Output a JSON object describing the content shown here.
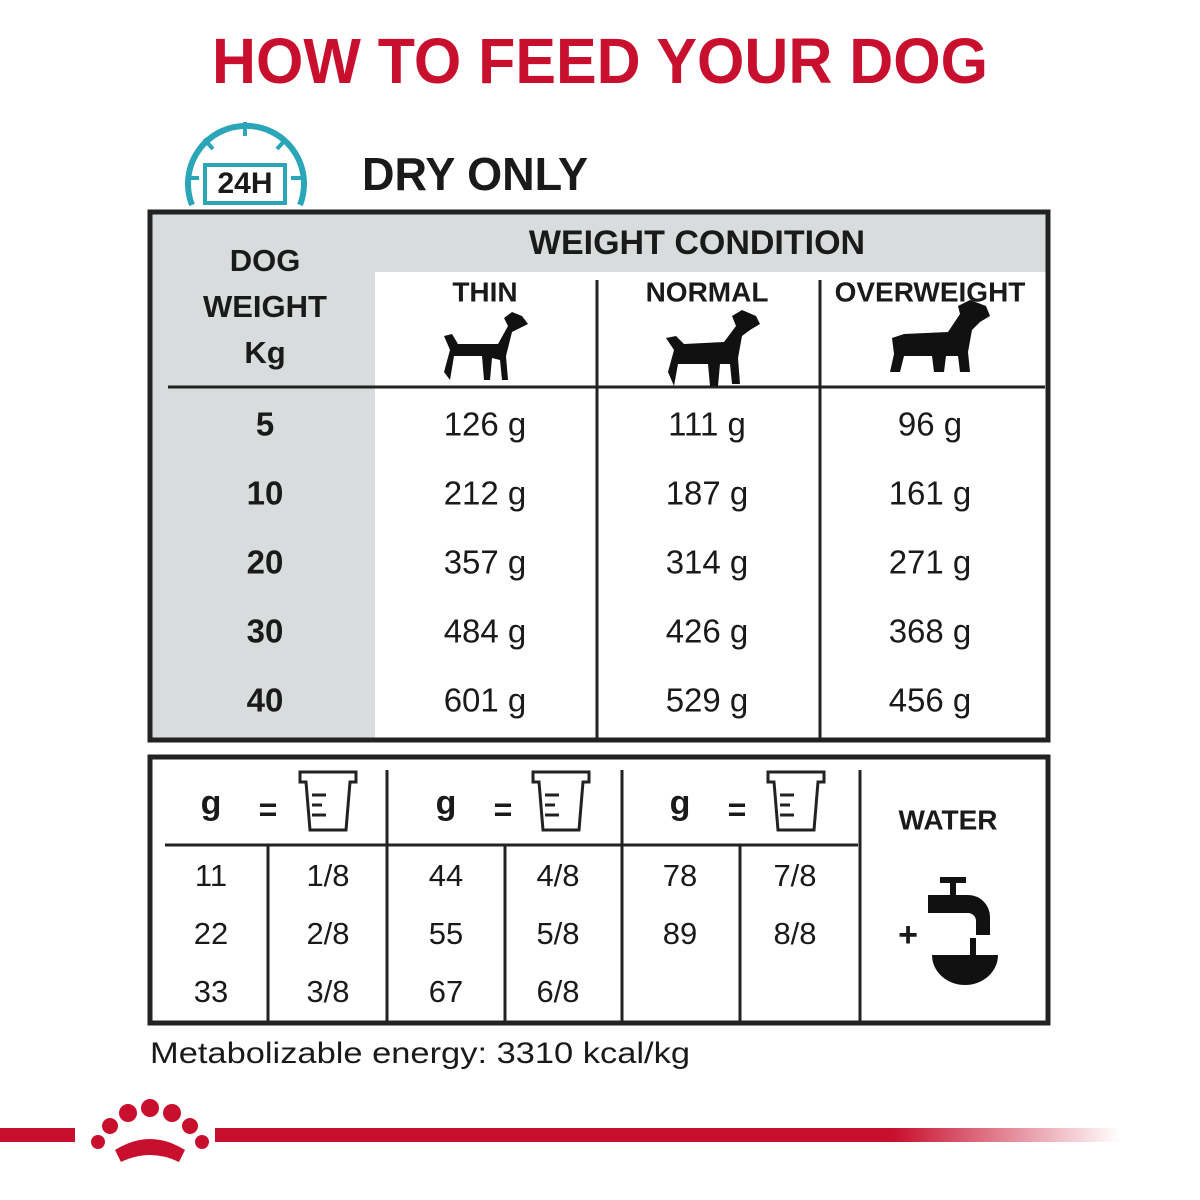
{
  "header": {
    "title": "HOW TO FEED YOUR DOG",
    "badge": "24H",
    "subtitle": "DRY ONLY"
  },
  "table": {
    "row_header": [
      "DOG",
      "WEIGHT",
      "Kg"
    ],
    "group_header": "WEIGHT CONDITION",
    "columns": [
      "THIN",
      "NORMAL",
      "OVERWEIGHT"
    ],
    "rows": [
      [
        "5",
        "126 g",
        "111 g",
        "96 g"
      ],
      [
        "10",
        "212 g",
        "187 g",
        "161 g"
      ],
      [
        "20",
        "357 g",
        "314 g",
        "271 g"
      ],
      [
        "30",
        "484 g",
        "426 g",
        "368 g"
      ],
      [
        "40",
        "601 g",
        "529 g",
        "456 g"
      ]
    ]
  },
  "conversion": {
    "groups": [
      {
        "unit": "g",
        "equals": "=",
        "rows": [
          [
            "11",
            "1/8"
          ],
          [
            "22",
            "2/8"
          ],
          [
            "33",
            "3/8"
          ]
        ]
      },
      {
        "unit": "g",
        "equals": "=",
        "rows": [
          [
            "44",
            "4/8"
          ],
          [
            "55",
            "5/8"
          ],
          [
            "67",
            "6/8"
          ]
        ]
      },
      {
        "unit": "g",
        "equals": "=",
        "rows": [
          [
            "78",
            "7/8"
          ],
          [
            "89",
            "8/8"
          ]
        ]
      }
    ],
    "water": {
      "label": "WATER",
      "plus": "+"
    }
  },
  "footer": {
    "energy": "Metabolizable energy: 3310 kcal/kg"
  }
}
